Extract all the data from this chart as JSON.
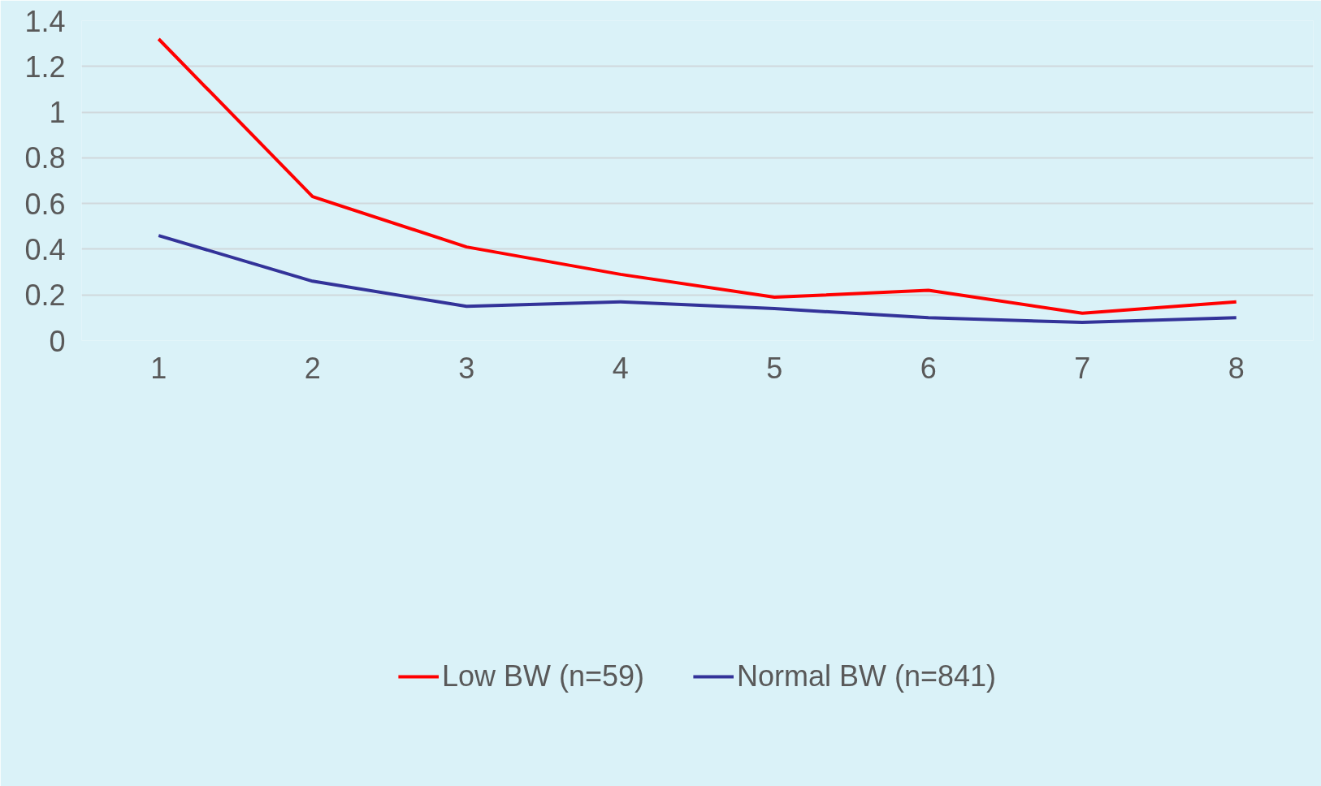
{
  "chart_data": {
    "type": "line",
    "categories": [
      "1",
      "2",
      "3",
      "4",
      "5",
      "6",
      "7",
      "8"
    ],
    "series": [
      {
        "name": "Low BW (n=59)",
        "color": "#ff0000",
        "values": [
          1.32,
          0.63,
          0.41,
          0.29,
          0.19,
          0.22,
          0.12,
          0.17
        ]
      },
      {
        "name": "Normal BW (n=841)",
        "color": "#333399",
        "values": [
          0.46,
          0.26,
          0.15,
          0.17,
          0.14,
          0.1,
          0.08,
          0.1
        ]
      }
    ],
    "ylim": [
      0,
      1.4
    ],
    "yticks": [
      0,
      0.2,
      0.4,
      0.6,
      0.8,
      1,
      1.2,
      1.4
    ],
    "grid": "y",
    "legend": "bottom",
    "marker": "none",
    "line_style": "solid"
  }
}
